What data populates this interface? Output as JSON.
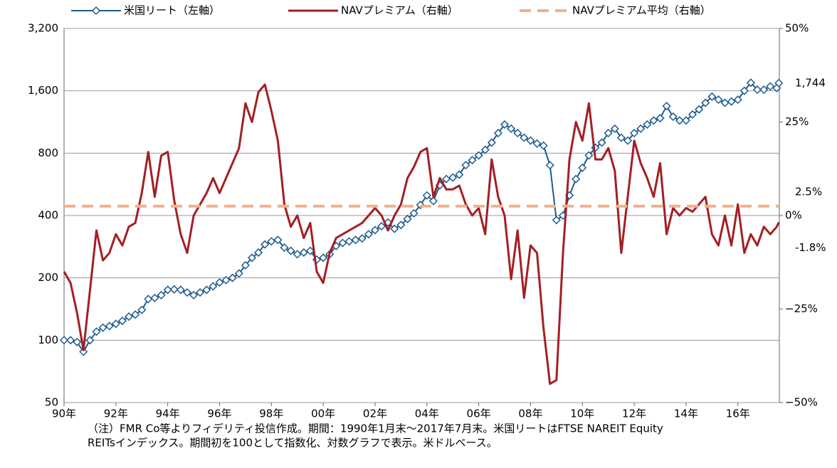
{
  "chart_data": {
    "type": "line",
    "x": [
      1990,
      1990.25,
      1990.5,
      1990.75,
      1991,
      1991.25,
      1991.5,
      1991.75,
      1992,
      1992.25,
      1992.5,
      1992.75,
      1993,
      1993.25,
      1993.5,
      1993.75,
      1994,
      1994.25,
      1994.5,
      1994.75,
      1995,
      1995.25,
      1995.5,
      1995.75,
      1996,
      1996.25,
      1996.5,
      1996.75,
      1997,
      1997.25,
      1997.5,
      1997.75,
      1998,
      1998.25,
      1998.5,
      1998.75,
      1999,
      1999.25,
      1999.5,
      1999.75,
      2000,
      2000.25,
      2000.5,
      2000.75,
      2001,
      2001.25,
      2001.5,
      2001.75,
      2002,
      2002.25,
      2002.5,
      2002.75,
      2003,
      2003.25,
      2003.5,
      2003.75,
      2004,
      2004.25,
      2004.5,
      2004.75,
      2005,
      2005.25,
      2005.5,
      2005.75,
      2006,
      2006.25,
      2006.5,
      2006.75,
      2007,
      2007.25,
      2007.5,
      2007.75,
      2008,
      2008.25,
      2008.5,
      2008.75,
      2009,
      2009.25,
      2009.5,
      2009.75,
      2010,
      2010.25,
      2010.5,
      2010.75,
      2011,
      2011.25,
      2011.5,
      2011.75,
      2012,
      2012.25,
      2012.5,
      2012.75,
      2013,
      2013.25,
      2013.5,
      2013.75,
      2014,
      2014.25,
      2014.5,
      2014.75,
      2015,
      2015.25,
      2015.5,
      2015.75,
      2016,
      2016.25,
      2016.5,
      2016.75,
      2017,
      2017.25,
      2017.5,
      2017.58
    ],
    "series": [
      {
        "name": "米国リート（左軸）",
        "color": "#1f5b8e",
        "axis": "y",
        "marker": "diamond",
        "values": [
          100,
          100,
          98,
          88,
          100,
          110,
          115,
          117,
          120,
          124,
          130,
          133,
          140,
          158,
          160,
          165,
          175,
          176,
          175,
          170,
          165,
          170,
          175,
          182,
          190,
          195,
          200,
          210,
          230,
          250,
          265,
          290,
          300,
          305,
          280,
          270,
          260,
          265,
          270,
          245,
          250,
          260,
          285,
          295,
          300,
          305,
          310,
          325,
          340,
          355,
          370,
          345,
          360,
          385,
          410,
          450,
          500,
          470,
          560,
          600,
          610,
          630,
          700,
          740,
          780,
          830,
          900,
          1000,
          1100,
          1050,
          1000,
          950,
          920,
          890,
          870,
          700,
          380,
          400,
          500,
          600,
          680,
          780,
          850,
          900,
          1000,
          1050,
          950,
          920,
          1000,
          1050,
          1100,
          1150,
          1180,
          1350,
          1200,
          1150,
          1150,
          1230,
          1300,
          1400,
          1500,
          1450,
          1400,
          1420,
          1450,
          1600,
          1750,
          1620,
          1620,
          1680,
          1650,
          1744
        ]
      },
      {
        "name": "NAVプレミアム（右軸）",
        "color": "#a31f24",
        "axis": "y2",
        "values": [
          -15,
          -18,
          -26,
          -36,
          -20,
          -4,
          -12,
          -10,
          -5,
          -8,
          -3,
          -2,
          6,
          17,
          5,
          16,
          17,
          4,
          -5,
          -10,
          0,
          3,
          6,
          10,
          6,
          10,
          14,
          18,
          30,
          25,
          33,
          35,
          28,
          20,
          3,
          -3,
          0,
          -6,
          -2,
          -15,
          -18,
          -10,
          -6,
          -5,
          -4,
          -3,
          -2,
          0,
          2,
          0,
          -4,
          0,
          3,
          10,
          13,
          17,
          18,
          5,
          10,
          7,
          7,
          8,
          3,
          0,
          2,
          -5,
          15,
          5,
          0,
          -17,
          -4,
          -22,
          -8,
          -10,
          -30,
          -45,
          -44,
          -10,
          15,
          25,
          20,
          30,
          15,
          15,
          18,
          12,
          -10,
          5,
          20,
          14,
          10,
          5,
          14,
          -5,
          2,
          0,
          2,
          1,
          3,
          5,
          -5,
          -8,
          0,
          -8,
          3,
          -10,
          -5,
          -8,
          -3,
          -5,
          -3,
          -1.8
        ]
      },
      {
        "name": "NAVプレミアム平均（右軸）",
        "color": "#f0b28a",
        "axis": "y2",
        "style": "dashed",
        "level": 2.5
      }
    ],
    "xlim": [
      1990,
      2017.6
    ],
    "xticks": [
      {
        "value": 1990,
        "label": "90年"
      },
      {
        "value": 1992,
        "label": "92年"
      },
      {
        "value": 1994,
        "label": "94年"
      },
      {
        "value": 1996,
        "label": "96年"
      },
      {
        "value": 1998,
        "label": "98年"
      },
      {
        "value": 2000,
        "label": "00年"
      },
      {
        "value": 2002,
        "label": "02年"
      },
      {
        "value": 2004,
        "label": "04年"
      },
      {
        "value": 2006,
        "label": "06年"
      },
      {
        "value": 2008,
        "label": "08年"
      },
      {
        "value": 2010,
        "label": "10年"
      },
      {
        "value": 2012,
        "label": "12年"
      },
      {
        "value": 2014,
        "label": "14年"
      },
      {
        "value": 2016,
        "label": "16年"
      }
    ],
    "ylim": [
      50,
      3200
    ],
    "log_y": true,
    "yticks": [
      50,
      100,
      200,
      400,
      800,
      {
        "value": 1600,
        "label": "1,600"
      },
      {
        "value": 3200,
        "label": "3,200"
      }
    ],
    "y2lim": [
      -50,
      50
    ],
    "y2ticks": [
      {
        "value": -50,
        "label": "−50%"
      },
      {
        "value": -25,
        "label": "−25%"
      },
      {
        "value": 0,
        "label": "0%"
      },
      {
        "value": 25,
        "label": "25%"
      },
      {
        "value": 50,
        "label": "50%"
      }
    ],
    "grid": true,
    "legend": "top",
    "annotations": [
      {
        "text": "1,744",
        "value": 1744,
        "axis": "y",
        "color": "#1f5b8e"
      },
      {
        "text": "2.5%",
        "value": 2.5,
        "axis": "y2",
        "color": "#d9843f"
      },
      {
        "text": "-1.8%",
        "value": -1.8,
        "axis": "y2",
        "color": "#a31f24"
      }
    ],
    "note": [
      "（注）FMR Co等よりフィデリティ投信作成。期間：1990年1月末～2017年7月末。米国リートはFTSE NAREIT Equity",
      "REITsインデックス。期間初を100として指数化、対数グラフで表示。米ドルベース。"
    ]
  }
}
